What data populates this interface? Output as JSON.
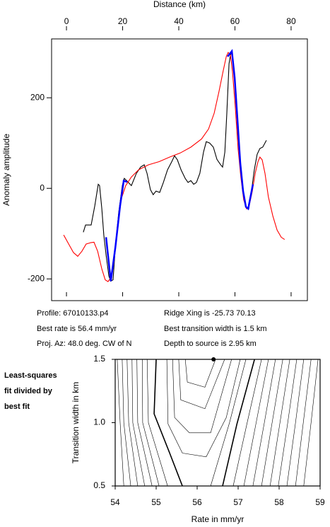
{
  "chart_data": [
    {
      "type": "line",
      "x_label": "Distance (km)",
      "y_label": "Anomaly amplitude",
      "xlim": [
        -5.3,
        85.8
      ],
      "xticks": [
        0,
        20,
        40,
        60,
        80
      ],
      "ylim": [
        -248,
        330
      ],
      "yticks": [
        -200,
        0,
        200
      ],
      "series": [
        {
          "color": "#000000",
          "x": [
            6.0,
            6.8,
            8.8,
            10.1,
            11.3,
            11.8,
            12.6,
            13.3,
            14.1,
            15.1,
            15.8,
            16.6,
            17.4,
            18.6,
            19.9,
            20.6,
            21.6,
            23.1,
            24.9,
            26.4,
            27.7,
            28.7,
            29.9,
            30.9,
            31.9,
            33.2,
            34.5,
            36.0,
            37.5,
            38.5,
            39.5,
            40.8,
            42.3,
            43.3,
            44.3,
            45.3,
            46.3,
            47.5,
            48.8,
            49.8,
            51.0,
            52.3,
            53.6,
            54.8,
            55.6,
            56.4,
            57.1,
            57.9,
            58.4,
            58.9,
            59.9,
            60.9,
            61.9,
            62.9,
            63.9,
            64.9,
            65.9,
            66.9,
            67.9,
            68.9,
            69.9,
            71.2
          ],
          "values": [
            -97,
            -81,
            -81,
            -38,
            9,
            6,
            -45,
            -103,
            -147,
            -194,
            -205,
            -202,
            -131,
            -53,
            6,
            22,
            16,
            6,
            33,
            47,
            52,
            33,
            -3,
            -14,
            -6,
            -9,
            13,
            41,
            59,
            72,
            63,
            41,
            22,
            13,
            17,
            9,
            13,
            33,
            80,
            103,
            100,
            91,
            64,
            53,
            47,
            80,
            166,
            275,
            294,
            303,
            244,
            150,
            53,
            -6,
            -41,
            -45,
            -6,
            41,
            75,
            88,
            91,
            106
          ]
        },
        {
          "color": "#ff0000",
          "x": [
            -1.0,
            0.8,
            2.5,
            4.0,
            5.5,
            7.0,
            8.6,
            9.8,
            11.1,
            12.6,
            13.8,
            14.8,
            15.8,
            16.9,
            18.1,
            19.6,
            21.1,
            23.1,
            25.7,
            29.2,
            33.0,
            36.7,
            40.5,
            44.3,
            48.1,
            50.6,
            52.6,
            54.3,
            55.8,
            56.9,
            57.6,
            58.4,
            59.1,
            60.1,
            61.1,
            62.1,
            63.1,
            64.1,
            65.1,
            66.2,
            67.2,
            68.2,
            68.9,
            69.7,
            70.7,
            71.9,
            73.5,
            75.0,
            76.5,
            77.7
          ],
          "values": [
            -103,
            -123,
            -142,
            -150,
            -139,
            -123,
            -120,
            -119,
            -139,
            -178,
            -202,
            -206,
            -197,
            -163,
            -84,
            -22,
            6,
            25,
            41,
            52,
            59,
            69,
            78,
            91,
            109,
            131,
            166,
            213,
            259,
            291,
            300,
            294,
            259,
            181,
            88,
            25,
            -25,
            -45,
            -38,
            -6,
            33,
            59,
            69,
            63,
            33,
            -19,
            -61,
            -92,
            -108,
            -113
          ]
        },
        {
          "color": "#0000ff",
          "x": [
            14.1,
            15.8,
            17.4,
            19.1,
            20.4,
            21.6,
            null,
            57.4,
            58.9,
            59.9,
            60.9,
            61.9,
            62.9,
            63.9,
            64.7,
            65.7,
            66.4
          ],
          "values": [
            -108,
            -205,
            -131,
            -38,
            17,
            14,
            null,
            291,
            303,
            244,
            150,
            56,
            -6,
            -41,
            -45,
            -14,
            9
          ]
        }
      ],
      "annotations": [
        "Profile: 67010133.p4",
        "Ridge Xing is -25.73 70.13",
        "Best rate is 56.4 mm/yr",
        "Best transition width is 1.5 km",
        "Proj. Az: 48.0 deg. CW of N",
        "Depth to source is   2.95 km"
      ]
    },
    {
      "type": "contour",
      "x_label": "Rate in mm/yr",
      "y_label": "Transition width in km",
      "side_note": [
        "Least-squares",
        "fit divided by",
        "best fit"
      ],
      "xlim": [
        54,
        59
      ],
      "xticks": [
        54,
        55,
        56,
        57,
        58,
        59
      ],
      "ylim": [
        0.5,
        1.5
      ],
      "yticks": [
        0.5,
        {
          "value": 1.0,
          "label": "1.0"
        },
        1.5
      ],
      "color": "#000000",
      "best": {
        "x": 56.4,
        "y": 1.5
      },
      "contours": [
        {
          "x": [
            54.05,
            54.12,
            54.21
          ],
          "y": [
            1.5,
            1.0,
            0.5
          ]
        },
        {
          "x": [
            54.17,
            54.21,
            54.38
          ],
          "y": [
            1.5,
            1.0,
            0.5
          ]
        },
        {
          "x": [
            54.29,
            54.33,
            54.55
          ],
          "y": [
            1.5,
            1.0,
            0.5
          ]
        },
        {
          "x": [
            54.41,
            54.43,
            54.72
          ],
          "y": [
            1.5,
            1.0,
            0.5
          ]
        },
        {
          "x": [
            54.53,
            54.55,
            54.9
          ],
          "y": [
            1.5,
            1.0,
            0.5
          ]
        },
        {
          "x": [
            54.66,
            54.67,
            55.07
          ],
          "y": [
            1.5,
            1.0,
            0.5
          ]
        },
        {
          "x": [
            54.78,
            54.81,
            55.28
          ],
          "y": [
            1.5,
            1.0,
            0.5
          ]
        },
        {
          "x": [
            55.0,
            54.95,
            55.33,
            55.64
          ],
          "y": [
            1.5,
            1.07,
            0.76,
            0.5
          ],
          "bold": true
        },
        {
          "x": [
            55.71,
            55.76,
            56.19,
            56.45
          ],
          "y": [
            1.5,
            1.32,
            1.28,
            1.5
          ]
        },
        {
          "x": [
            55.55,
            55.6,
            56.19,
            56.67
          ],
          "y": [
            1.5,
            1.18,
            1.11,
            1.5
          ]
        },
        {
          "x": [
            55.4,
            55.45,
            55.81,
            56.33,
            56.84
          ],
          "y": [
            1.5,
            1.04,
            0.92,
            0.92,
            1.5
          ]
        },
        {
          "x": [
            55.26,
            55.29,
            55.64,
            56.22,
            56.71,
            57.05
          ],
          "y": [
            1.5,
            0.99,
            0.76,
            0.73,
            1.04,
            1.5
          ]
        },
        {
          "x": [
            57.19,
            56.79,
            56.33
          ],
          "y": [
            1.5,
            1.0,
            0.5
          ]
        },
        {
          "x": [
            57.4,
            56.97,
            56.62
          ],
          "y": [
            1.5,
            0.99,
            0.5
          ],
          "bold": true
        },
        {
          "x": [
            57.57,
            57.22,
            56.88
          ],
          "y": [
            1.5,
            1.0,
            0.5
          ]
        },
        {
          "x": [
            57.74,
            57.44,
            57.14
          ],
          "y": [
            1.5,
            1.0,
            0.5
          ]
        },
        {
          "x": [
            57.91,
            57.64,
            57.36
          ],
          "y": [
            1.5,
            1.0,
            0.5
          ]
        },
        {
          "x": [
            58.09,
            57.83,
            57.57
          ],
          "y": [
            1.5,
            1.0,
            0.5
          ]
        },
        {
          "x": [
            58.26,
            58.02,
            57.78
          ],
          "y": [
            1.5,
            1.0,
            0.5
          ]
        },
        {
          "x": [
            58.43,
            58.21,
            57.98
          ],
          "y": [
            1.5,
            1.0,
            0.5
          ]
        },
        {
          "x": [
            58.6,
            58.4,
            58.19
          ],
          "y": [
            1.5,
            1.0,
            0.5
          ]
        },
        {
          "x": [
            58.78,
            58.59,
            58.4
          ],
          "y": [
            1.5,
            1.0,
            0.5
          ]
        },
        {
          "x": [
            58.95,
            58.78,
            58.6
          ],
          "y": [
            1.5,
            1.0,
            0.5
          ]
        }
      ]
    }
  ]
}
